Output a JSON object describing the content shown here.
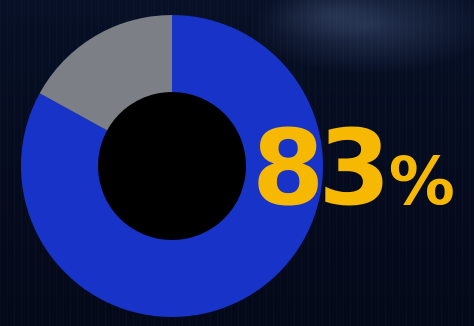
{
  "chart_data": {
    "type": "pie",
    "style": "donut",
    "slices": [
      {
        "label": "",
        "value": 83,
        "color": "#1733c8"
      },
      {
        "label": "",
        "value": 17,
        "color": "#7c7f85"
      }
    ],
    "center_color": "#000000",
    "start_angle_deg": 0,
    "direction": "clockwise"
  },
  "headline": {
    "value": "83",
    "unit": "%",
    "color": "#f6b800"
  },
  "background_color": "#040a1c"
}
